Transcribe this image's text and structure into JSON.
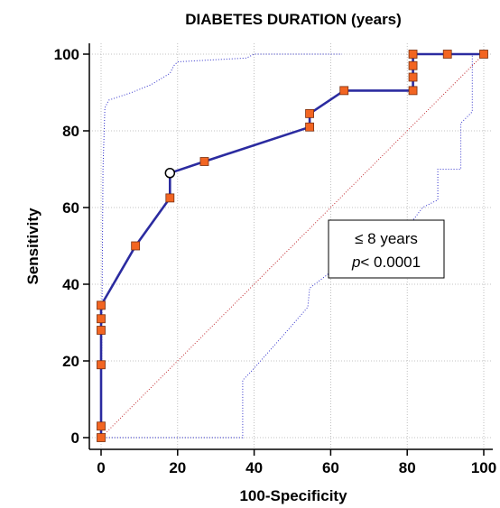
{
  "chart_data": {
    "type": "line",
    "title": "DIABETES DURATION (years)",
    "xlabel": "100-Specificity",
    "ylabel": "Sensitivity",
    "xlim": [
      0,
      100
    ],
    "ylim": [
      0,
      100
    ],
    "xticks": [
      "0",
      "20",
      "40",
      "60",
      "80",
      "100"
    ],
    "yticks": [
      "0",
      "20",
      "40",
      "60",
      "80",
      "100"
    ],
    "grid": true,
    "roc_curve": [
      [
        0,
        0
      ],
      [
        0,
        3
      ],
      [
        0,
        19
      ],
      [
        0,
        28
      ],
      [
        0,
        31
      ],
      [
        0,
        34.5
      ],
      [
        9,
        50
      ],
      [
        18,
        62.5
      ],
      [
        18,
        69
      ],
      [
        27,
        72
      ],
      [
        54.5,
        81
      ],
      [
        54.5,
        84.5
      ],
      [
        63.5,
        90.5
      ],
      [
        81.5,
        90.5
      ],
      [
        81.5,
        94
      ],
      [
        81.5,
        97
      ],
      [
        81.5,
        100
      ],
      [
        90.5,
        100
      ],
      [
        100,
        100
      ]
    ],
    "markers": [
      [
        0,
        0
      ],
      [
        0,
        3
      ],
      [
        0,
        19
      ],
      [
        0,
        28
      ],
      [
        0,
        31
      ],
      [
        0,
        34.5
      ],
      [
        9,
        50
      ],
      [
        18,
        62.5
      ],
      [
        27,
        72
      ],
      [
        54.5,
        81
      ],
      [
        54.5,
        84.5
      ],
      [
        63.5,
        90.5
      ],
      [
        81.5,
        90.5
      ],
      [
        81.5,
        94
      ],
      [
        81.5,
        97
      ],
      [
        81.5,
        100
      ],
      [
        90.5,
        100
      ],
      [
        100,
        100
      ]
    ],
    "optimal_point": [
      18,
      69
    ],
    "upper_ci": [
      [
        0,
        0
      ],
      [
        0.5,
        70
      ],
      [
        1,
        86
      ],
      [
        2,
        88
      ],
      [
        8,
        90
      ],
      [
        13,
        92
      ],
      [
        18,
        95
      ],
      [
        19,
        97
      ],
      [
        20,
        98
      ],
      [
        38,
        99
      ],
      [
        40,
        100
      ],
      [
        63,
        100
      ]
    ],
    "lower_ci": [
      [
        0,
        0
      ],
      [
        37,
        0
      ],
      [
        37,
        15
      ],
      [
        39,
        17
      ],
      [
        47,
        26
      ],
      [
        54,
        34
      ],
      [
        54.5,
        39
      ],
      [
        69,
        50
      ],
      [
        81,
        56
      ],
      [
        84,
        60
      ],
      [
        88,
        62
      ],
      [
        88,
        70
      ],
      [
        94,
        70
      ],
      [
        94,
        82
      ],
      [
        97,
        85
      ],
      [
        97,
        100
      ]
    ],
    "diagonal": [
      [
        0,
        0
      ],
      [
        100,
        100
      ]
    ],
    "annotation": {
      "line1": "≤ 8 years",
      "p_italic": "p",
      "p_rest": "< 0.0001"
    },
    "colors": {
      "roc_line": "#2b2ba0",
      "marker_fill": "#f26522",
      "marker_stroke": "#7a3010",
      "ci_line": "#3333cc",
      "diagonal": "#c0282d",
      "grid": "#b0b0b0"
    }
  }
}
